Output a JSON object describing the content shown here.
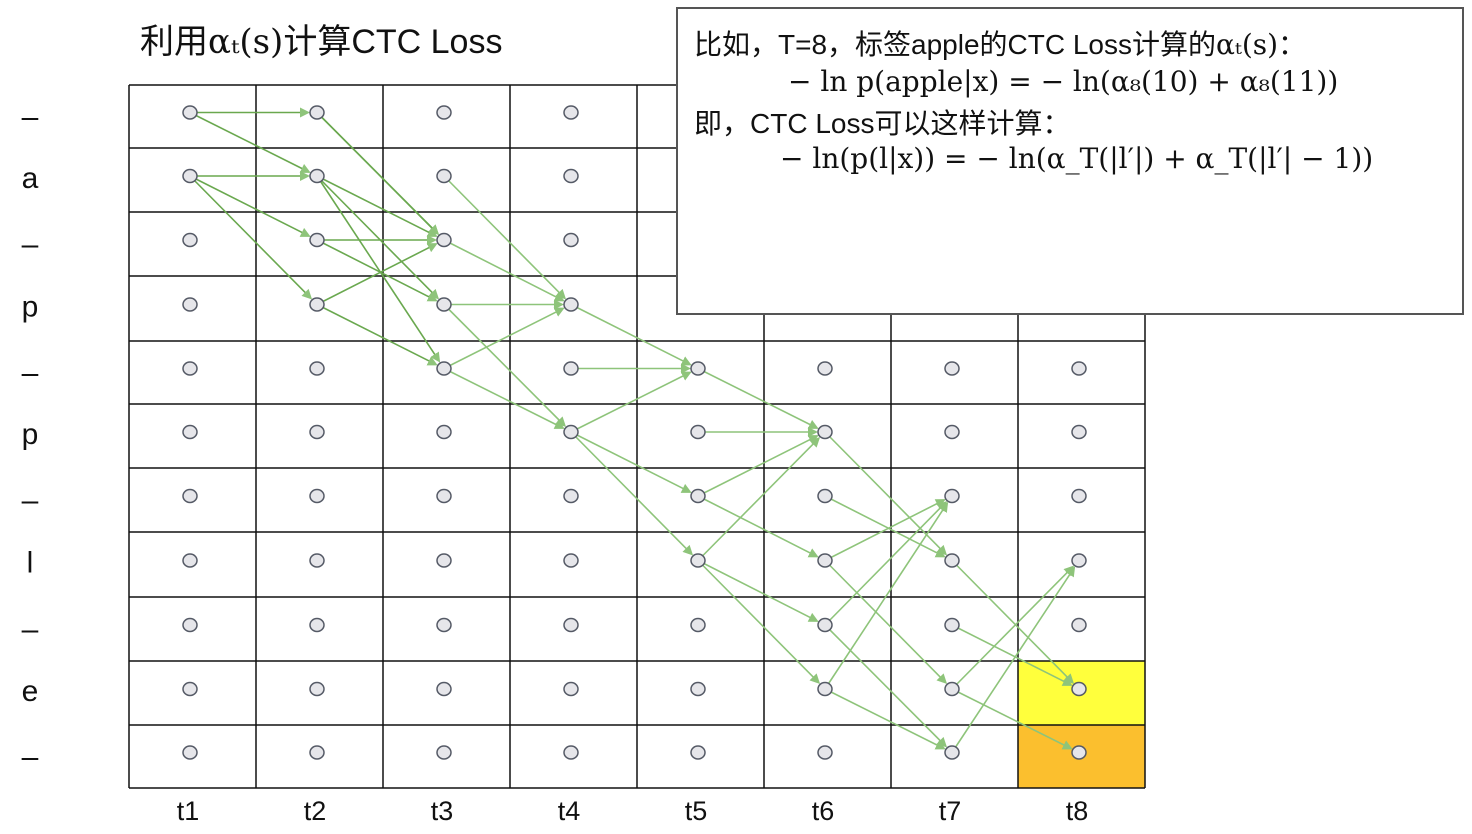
{
  "title": {
    "prefix": "利用",
    "math": "αₜ(s)",
    "suffix": "计算CTC Loss"
  },
  "info_box": {
    "line1_text": "比如，T=8，标签apple的CTC Loss计算的",
    "line1_math": "αₜ(s)",
    "line1_end": "：",
    "line2": "− ln p(apple|x) = − ln(α₈(10) + α₈(11))",
    "line3": "即，CTC Loss可以这样计算：",
    "line4": "− ln(p(l|x)) = − ln(α_T(|l′|) + α_T(|l′| − 1))"
  },
  "diagram": {
    "row_labels": [
      "–",
      "a",
      "–",
      "p",
      "–",
      "p",
      "–",
      "l",
      "–",
      "e",
      "–"
    ],
    "col_labels": [
      "t1",
      "t2",
      "t3",
      "t4",
      "t5",
      "t6",
      "t7",
      "t8"
    ],
    "highlighted_cells": [
      {
        "row": 9,
        "col": 7,
        "color": "#ffff3c"
      },
      {
        "row": 10,
        "col": 7,
        "color": "#fbbf2e"
      }
    ],
    "transitions": [
      [
        [
          0,
          0
        ],
        [
          1,
          0
        ]
      ],
      [
        [
          0,
          0
        ],
        [
          1,
          1
        ]
      ],
      [
        [
          1,
          0
        ],
        [
          1,
          1
        ]
      ],
      [
        [
          1,
          0
        ],
        [
          1,
          2
        ]
      ],
      [
        [
          1,
          0
        ],
        [
          1,
          3
        ]
      ],
      [
        [
          0,
          1
        ],
        [
          0,
          2
        ]
      ],
      [
        [
          0,
          1
        ],
        [
          1,
          2
        ]
      ],
      [
        [
          1,
          1
        ],
        [
          1,
          2
        ]
      ],
      [
        [
          1,
          1
        ],
        [
          1,
          3
        ]
      ],
      [
        [
          1,
          1
        ],
        [
          1,
          4
        ]
      ],
      [
        [
          2,
          1
        ],
        [
          2,
          2
        ]
      ],
      [
        [
          2,
          1
        ],
        [
          2,
          3
        ]
      ],
      [
        [
          3,
          1
        ],
        [
          3,
          2
        ]
      ],
      [
        [
          3,
          1
        ],
        [
          3,
          4
        ]
      ],
      [
        [
          1,
          2
        ],
        [
          1,
          3
        ]
      ],
      [
        [
          2,
          2
        ],
        [
          2,
          3
        ]
      ],
      [
        [
          3,
          2
        ],
        [
          3,
          3
        ]
      ],
      [
        [
          3,
          2
        ],
        [
          3,
          5
        ]
      ],
      [
        [
          4,
          2
        ],
        [
          4,
          3
        ]
      ],
      [
        [
          4,
          2
        ],
        [
          4,
          5
        ]
      ],
      [
        [
          3,
          3
        ],
        [
          3,
          4
        ]
      ],
      [
        [
          4,
          3
        ],
        [
          4,
          4
        ]
      ],
      [
        [
          5,
          3
        ],
        [
          5,
          4
        ]
      ],
      [
        [
          5,
          3
        ],
        [
          5,
          6
        ]
      ],
      [
        [
          5,
          3
        ],
        [
          5,
          7
        ]
      ],
      [
        [
          4,
          4
        ],
        [
          4,
          5
        ]
      ],
      [
        [
          5,
          4
        ],
        [
          5,
          5
        ]
      ],
      [
        [
          6,
          4
        ],
        [
          6,
          5
        ]
      ],
      [
        [
          6,
          4
        ],
        [
          6,
          7
        ]
      ],
      [
        [
          7,
          4
        ],
        [
          7,
          5
        ]
      ],
      [
        [
          7,
          4
        ],
        [
          7,
          8
        ]
      ],
      [
        [
          7,
          4
        ],
        [
          7,
          9
        ]
      ],
      [
        [
          5,
          5
        ],
        [
          5,
          7
        ]
      ],
      [
        [
          6,
          5
        ],
        [
          6,
          7
        ]
      ],
      [
        [
          7,
          5
        ],
        [
          7,
          6
        ]
      ],
      [
        [
          7,
          5
        ],
        [
          7,
          9
        ]
      ],
      [
        [
          8,
          5
        ],
        [
          8,
          6
        ]
      ],
      [
        [
          8,
          5
        ],
        [
          8,
          10
        ]
      ],
      [
        [
          9,
          5
        ],
        [
          9,
          6
        ]
      ],
      [
        [
          9,
          5
        ],
        [
          9,
          10
        ]
      ],
      [
        [
          7,
          6
        ],
        [
          7,
          9
        ]
      ],
      [
        [
          8,
          6
        ],
        [
          8,
          9
        ]
      ],
      [
        [
          9,
          6
        ],
        [
          9,
          7
        ]
      ],
      [
        [
          9,
          6
        ],
        [
          9,
          10
        ]
      ],
      [
        [
          10,
          6
        ],
        [
          10,
          7
        ]
      ]
    ],
    "arrow_color": "#8ec47a",
    "arrow_color_dark": "#6aa84f",
    "node_fill": "#e6e6ea",
    "node_stroke": "#555a66"
  }
}
